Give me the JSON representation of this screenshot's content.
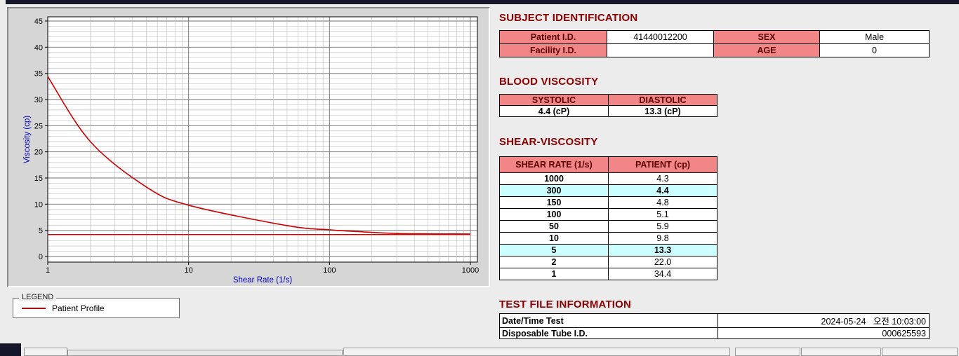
{
  "chart": {
    "legend_title": "LEGEND",
    "legend_label": "Patient Profile"
  },
  "chart_data": {
    "type": "line",
    "title": "",
    "xlabel": "Shear Rate (1/s)",
    "ylabel": "Viscosity (cp)",
    "x_scale": "log",
    "xlim": [
      1,
      1000
    ],
    "ylim": [
      0,
      45
    ],
    "x_ticks": [
      1,
      10,
      100,
      1000
    ],
    "y_ticks": [
      0,
      5,
      10,
      15,
      20,
      25,
      30,
      35,
      40,
      45
    ],
    "grid": true,
    "legend_position": "below-left",
    "x": [
      1,
      2,
      5,
      10,
      50,
      100,
      150,
      300,
      1000
    ],
    "series": [
      {
        "name": "Patient Profile",
        "values": [
          34.4,
          22.0,
          13.3,
          9.8,
          5.9,
          5.1,
          4.8,
          4.4,
          4.3
        ]
      }
    ],
    "baseline_y": 4.2,
    "line_color": "#cc0000"
  },
  "subject": {
    "title": "SUBJECT IDENTIFICATION",
    "rows": [
      {
        "label1": "Patient I.D.",
        "value1": "41440012200",
        "label2": "SEX",
        "value2": "Male"
      },
      {
        "label1": "Facility I.D.",
        "value1": "",
        "label2": "AGE",
        "value2": "0"
      }
    ]
  },
  "blood_viscosity": {
    "title": "BLOOD VISCOSITY",
    "headers": [
      "SYSTOLIC",
      "DIASTOLIC"
    ],
    "values": [
      "4.4 (cP)",
      "13.3 (cP)"
    ]
  },
  "shear_viscosity": {
    "title": "SHEAR-VISCOSITY",
    "headers": [
      "SHEAR RATE (1/s)",
      "PATIENT (cp)"
    ],
    "rows": [
      {
        "rate": "1000",
        "value": "4.3",
        "highlight": false
      },
      {
        "rate": "300",
        "value": "4.4",
        "highlight": true
      },
      {
        "rate": "150",
        "value": "4.8",
        "highlight": false
      },
      {
        "rate": "100",
        "value": "5.1",
        "highlight": false
      },
      {
        "rate": "50",
        "value": "5.9",
        "highlight": false
      },
      {
        "rate": "10",
        "value": "9.8",
        "highlight": false
      },
      {
        "rate": "5",
        "value": "13.3",
        "highlight": true
      },
      {
        "rate": "2",
        "value": "22.0",
        "highlight": false
      },
      {
        "rate": "1",
        "value": "34.4",
        "highlight": false
      }
    ]
  },
  "test_file": {
    "title": "TEST FILE INFORMATION",
    "rows": [
      {
        "label": "Date/Time Test",
        "value": "2024-05-24   오전 10:03:00"
      },
      {
        "label": "Disposable Tube I.D.",
        "value": "000625593"
      }
    ]
  },
  "colors": {
    "heading": "#8b0000",
    "table_header_bg": "#f28585",
    "highlight": "#ccffff",
    "line": "#cc0000",
    "axis_label": "#0000bb"
  }
}
